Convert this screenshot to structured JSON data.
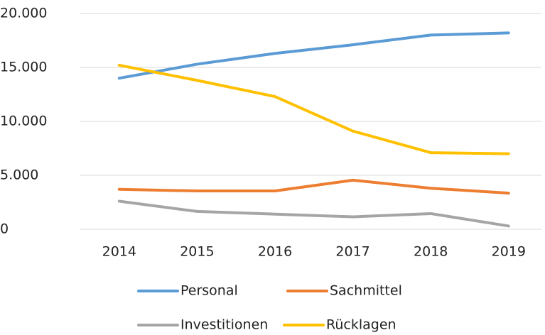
{
  "chart_data": {
    "type": "line",
    "categories": [
      "2014",
      "2015",
      "2016",
      "2017",
      "2018",
      "2019"
    ],
    "series": [
      {
        "name": "Personal",
        "color": "#5b9bd5",
        "values": [
          14000,
          15300,
          16300,
          17100,
          18000,
          18200
        ]
      },
      {
        "name": "Sachmittel",
        "color": "#ed7d31",
        "values": [
          3700,
          3550,
          3550,
          4550,
          3800,
          3350
        ]
      },
      {
        "name": "Investitionen",
        "color": "#a5a5a5",
        "values": [
          2600,
          1650,
          1400,
          1150,
          1450,
          300
        ]
      },
      {
        "name": "Rücklagen",
        "color": "#ffc000",
        "values": [
          15200,
          13800,
          12300,
          9100,
          7100,
          7000
        ]
      }
    ],
    "ylim": [
      0,
      20000
    ],
    "yticks": [
      0,
      {
        "value": 5000,
        "label": "5.000"
      },
      {
        "value": 10000,
        "label": "10.000"
      },
      {
        "value": 15000,
        "label": "15.000"
      },
      {
        "value": 20000,
        "label": "20.000"
      }
    ],
    "grid": true,
    "legend": "bottom"
  }
}
